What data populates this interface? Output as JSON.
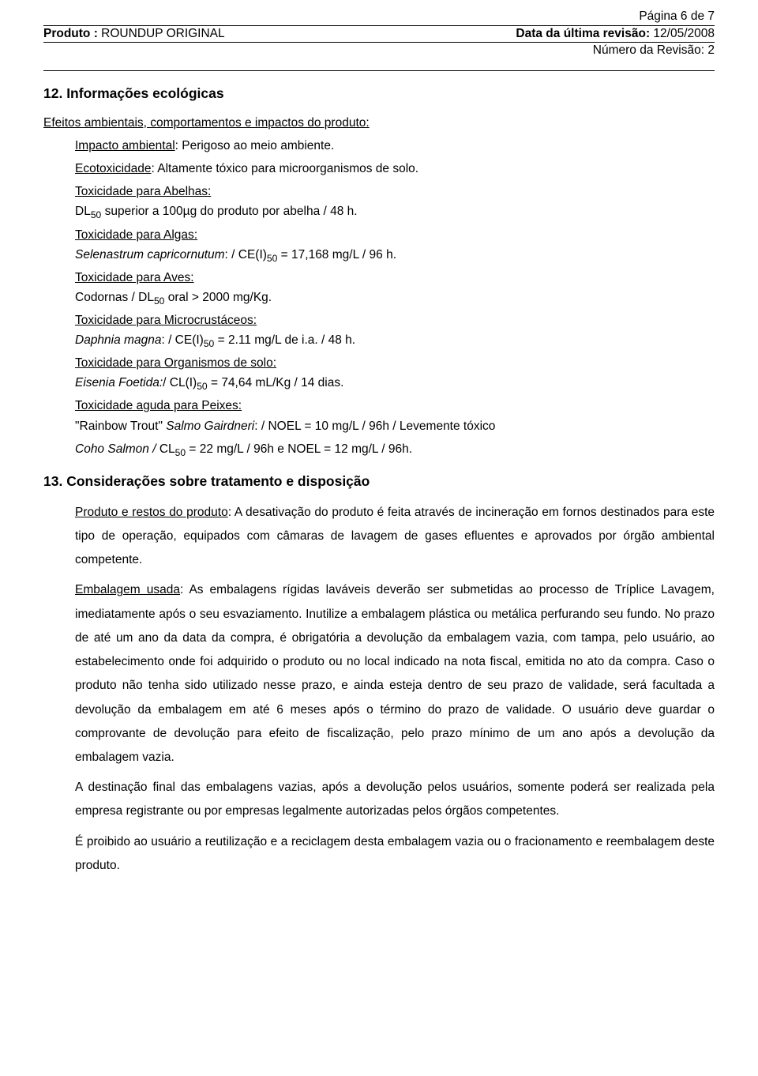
{
  "page_num": "Página 6 de 7",
  "header": {
    "product_label": "Produto :",
    "product_value": "  ROUNDUP ORIGINAL",
    "revdate_label": "Data da última revisão:",
    "revdate_value": " 12/05/2008",
    "revnum_label": "Número da Revisão:",
    "revnum_value": " 2"
  },
  "s12": {
    "heading": "12. Informações ecológicas",
    "intro": "Efeitos ambientais, comportamentos e impactos do produto:",
    "impact_label": "Impacto ambiental",
    "impact_text": ": Perigoso ao meio ambiente.",
    "ecotox_label": "Ecotoxicidade",
    "ecotox_text": ": Altamente tóxico para microorganismos de solo.",
    "bees_label": "Toxicidade para Abelhas:",
    "bees_pre": "DL",
    "bees_sub": "50",
    "bees_post": " superior a 100µg do produto por abelha / 48 h.",
    "algae_label": "Toxicidade para Algas:",
    "algae_it": "Selenastrum capricornutum",
    "algae_txt1": ": / CE(I)",
    "algae_sub": "50",
    "algae_txt2": " = 17,168 mg/L / 96 h.",
    "birds_label": "Toxicidade para Aves:",
    "birds_pre": "Codornas / DL",
    "birds_sub": "50",
    "birds_post": " oral > 2000 mg/Kg.",
    "micro_label": "Toxicidade para Microcrustáceos:",
    "micro_it": "Daphnia magna",
    "micro_txt1": ": / CE(I)",
    "micro_sub": "50",
    "micro_txt2": " = 2.11 mg/L de i.a. / 48 h.",
    "soil_label": "Toxicidade para Organismos de solo:",
    "soil_it": "Eisenia Foetida:",
    "soil_txt1": "/ CL(I)",
    "soil_sub": "50",
    "soil_txt2": " = 74,64 mL/Kg / 14 dias.",
    "fish_label": "Toxicidade aguda para Peixes:",
    "fish_line1_pre": " \"Rainbow Trout\" ",
    "fish_line1_it": "Salmo Gairdneri",
    "fish_line1_post": ": / NOEL = 10 mg/L / 96h / Levemente tóxico",
    "fish_line2_it": "Coho Salmon / ",
    "fish_line2_txt1": "CL",
    "fish_line2_sub": "50",
    "fish_line2_txt2": " = 22 mg/L / 96h e NOEL = 12 mg/L / 96h."
  },
  "s13": {
    "heading": "13. Considerações sobre tratamento e disposição",
    "p1_label": "Produto e restos do produto",
    "p1_text": ": A desativação do produto é feita através de incineração em fornos destinados para este tipo de operação, equipados com câmaras de lavagem de gases efluentes e aprovados por órgão ambiental competente.",
    "p2_label": "Embalagem usada",
    "p2_text": ": As embalagens rígidas laváveis deverão ser submetidas ao processo de Tríplice Lavagem, imediatamente após o seu esvaziamento. Inutilize a embalagem plástica ou metálica perfurando seu fundo. No prazo de até um ano da data da compra, é obrigatória a devolução da embalagem vazia, com tampa, pelo usuário, ao estabelecimento onde foi adquirido o produto ou no local indicado na nota fiscal, emitida no ato da compra. Caso o produto não tenha sido utilizado nesse prazo, e ainda esteja dentro de seu prazo de validade, será facultada a devolução da embalagem em até 6 meses após o término do prazo de validade. O usuário deve guardar o comprovante de devolução para efeito de fiscalização, pelo prazo mínimo de um ano após a devolução da embalagem vazia.",
    "p3": "A destinação final das embalagens vazias, após a devolução pelos usuários, somente poderá ser realizada pela empresa registrante ou por empresas legalmente autorizadas pelos órgãos competentes.",
    "p4": "É proibido ao usuário a reutilização e a reciclagem desta embalagem vazia ou o fracionamento e reembalagem deste produto."
  }
}
